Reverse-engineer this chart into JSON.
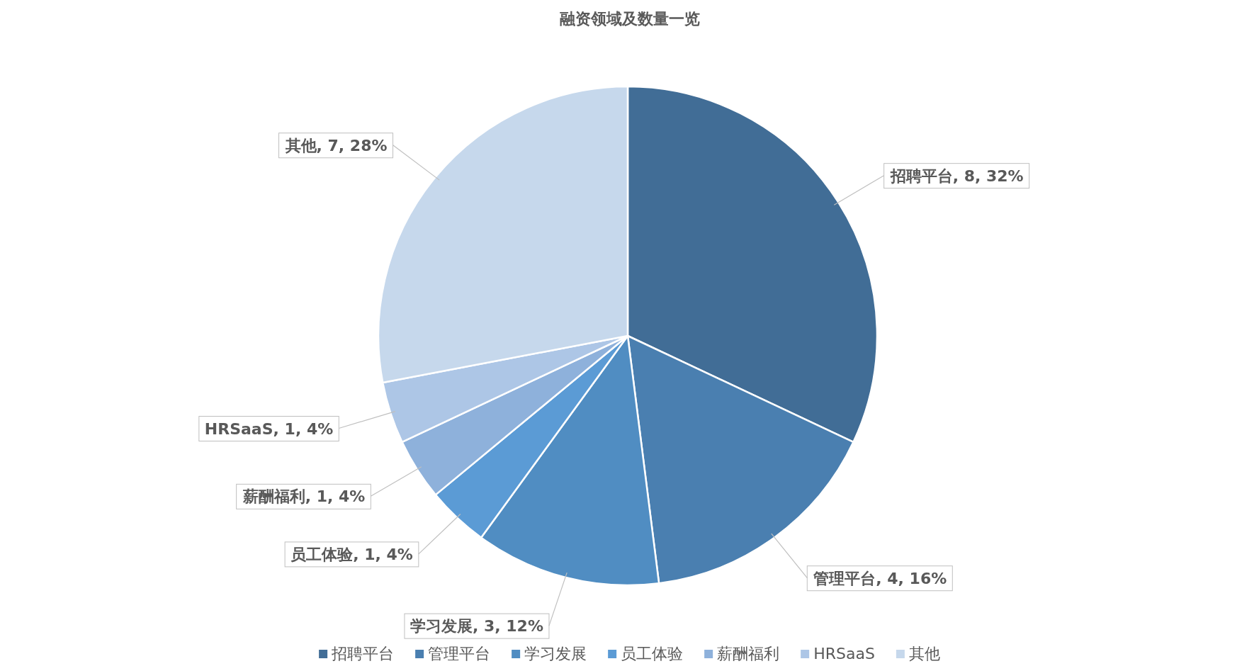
{
  "chart_data": {
    "type": "pie",
    "title": "融资领域及数量一览",
    "categories": [
      "招聘平台",
      "管理平台",
      "学习发展",
      "员工体验",
      "薪酬福利",
      "HRSaaS",
      "其他"
    ],
    "values": [
      8,
      4,
      3,
      1,
      1,
      1,
      7
    ],
    "colors": [
      "#416d96",
      "#4a7fb0",
      "#508dc2",
      "#5b9bd5",
      "#8eb1db",
      "#adc6e6",
      "#c6d8ec"
    ],
    "value_labels": [
      "招聘平台, 8, 32%",
      "管理平台, 4, 16%",
      "学习发展, 3, 12%",
      "员工体验, 1, 4%",
      "薪酬福利, 1, 4%",
      "HRSaaS, 1, 4%",
      "其他, 7, 28%"
    ],
    "legend": "bottom"
  }
}
